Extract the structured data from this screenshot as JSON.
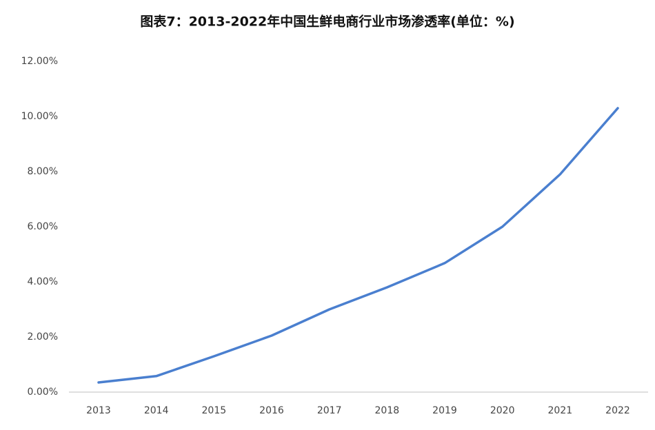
{
  "chart_data": {
    "type": "line",
    "title": "图表7：2013-2022年中国生鲜电商行业市场渗透率(单位：%)",
    "categories": [
      "2013",
      "2014",
      "2015",
      "2016",
      "2017",
      "2018",
      "2019",
      "2020",
      "2021",
      "2022"
    ],
    "series": [
      {
        "color": "#4a7fcf",
        "values": [
          0.35,
          0.58,
          1.3,
          2.05,
          3.0,
          3.8,
          4.68,
          6.0,
          7.9,
          10.3
        ]
      }
    ],
    "ylim": [
      0,
      12
    ],
    "yticks": [
      {
        "value": 0,
        "label": "0.00%"
      },
      {
        "value": 2,
        "label": "2.00%"
      },
      {
        "value": 4,
        "label": "4.00%"
      },
      {
        "value": 6,
        "label": "6.00%"
      },
      {
        "value": 8,
        "label": "8.00%"
      },
      {
        "value": 10,
        "label": "10.00%"
      },
      {
        "value": 12,
        "label": "12.00%"
      }
    ],
    "grid": false
  }
}
